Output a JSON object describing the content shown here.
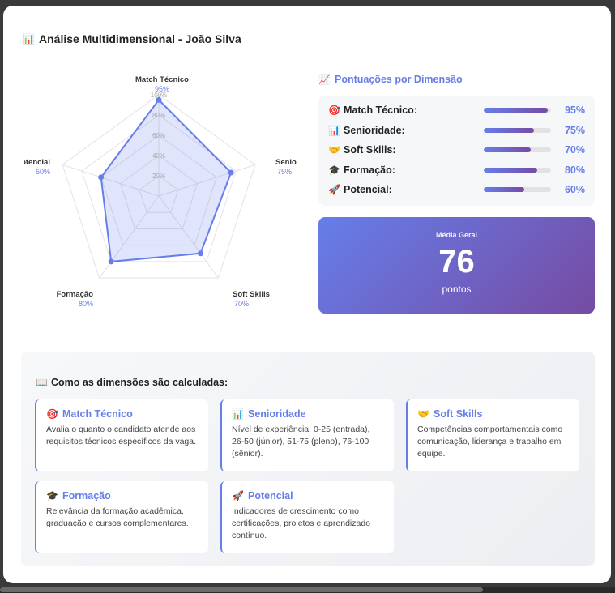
{
  "header": {
    "title": "Análise Multidimensional - João Silva",
    "icon": "bar-chart-icon"
  },
  "chart_data": {
    "type": "radar",
    "categories": [
      "Match Técnico",
      "Senioridade",
      "Soft Skills",
      "Formação",
      "Potencial"
    ],
    "values": [
      95,
      75,
      70,
      80,
      60
    ],
    "value_labels": [
      "95%",
      "75%",
      "70%",
      "80%",
      "60%"
    ],
    "clipped_labels": {
      "Senioridade": "Senio",
      "Potencial": "encial"
    },
    "rlim": [
      0,
      100
    ],
    "ticks": [
      "20%",
      "40%",
      "60%",
      "80%",
      "100%"
    ],
    "tick_values": [
      20,
      40,
      60,
      80,
      100
    ],
    "grid": true,
    "color": "#667eea"
  },
  "scores": {
    "heading": "Pontuações por Dimensão",
    "heading_icon": "chart-increasing-icon",
    "items": [
      {
        "label": "Match Técnico:",
        "value": "95%",
        "fraction": 0.95,
        "icon": "target-icon",
        "glyph": "🎯"
      },
      {
        "label": "Senioridade:",
        "value": "75%",
        "fraction": 0.75,
        "icon": "bar-chart-icon",
        "glyph": "📊"
      },
      {
        "label": "Soft Skills:",
        "value": "70%",
        "fraction": 0.7,
        "icon": "handshake-icon",
        "glyph": "🤝"
      },
      {
        "label": "Formação:",
        "value": "80%",
        "fraction": 0.8,
        "icon": "graduation-cap-icon",
        "glyph": "🎓"
      },
      {
        "label": "Potencial:",
        "value": "60%",
        "fraction": 0.6,
        "icon": "rocket-icon",
        "glyph": "🚀"
      }
    ]
  },
  "average": {
    "label": "Média Geral",
    "value": "76",
    "unit": "pontos"
  },
  "explanation": {
    "heading": "Como as dimensões são calculadas:",
    "heading_icon": "book-icon",
    "cards": [
      {
        "title": "Match Técnico",
        "glyph": "🎯",
        "icon": "target-icon",
        "text": "Avalia o quanto o candidato atende aos requisitos técnicos específicos da vaga."
      },
      {
        "title": "Senioridade",
        "glyph": "📊",
        "icon": "bar-chart-icon",
        "text": "Nível de experiência: 0-25 (entrada), 26-50 (júnior), 51-75 (pleno), 76-100 (sênior)."
      },
      {
        "title": "Soft Skills",
        "glyph": "🤝",
        "icon": "handshake-icon",
        "text": "Competências comportamentais como comunicação, liderança e trabalho em equipe."
      },
      {
        "title": "Formação",
        "glyph": "🎓",
        "icon": "graduation-cap-icon",
        "text": "Relevância da formação acadêmica, graduação e cursos complementares."
      },
      {
        "title": "Potencial",
        "glyph": "🚀",
        "icon": "rocket-icon",
        "text": "Indicadores de crescimento como certificações, projetos e aprendizado contínuo."
      }
    ]
  }
}
